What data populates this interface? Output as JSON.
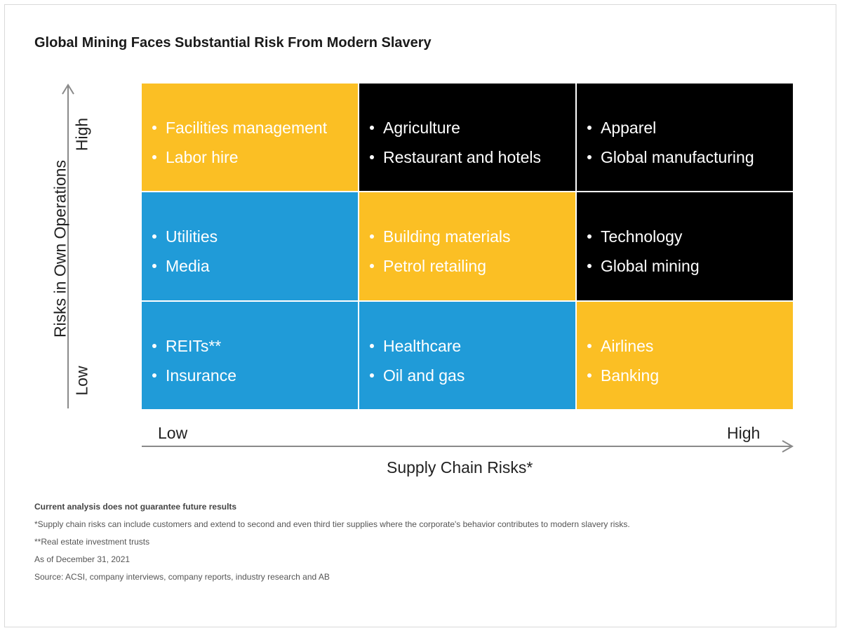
{
  "title": "Global Mining Faces Substantial Risk From Modern Slavery",
  "y_axis": {
    "label": "Risks in Own Operations",
    "high": "High",
    "low": "Low"
  },
  "x_axis": {
    "label": "Supply Chain Risks*",
    "low": "Low",
    "high": "High"
  },
  "colors": {
    "yellow": "#fbbf24",
    "black": "#000000",
    "blue": "#209bd8"
  },
  "matrix": [
    {
      "row": "High",
      "col": "Low",
      "color": "yellow",
      "items": [
        "Facilities management",
        "Labor hire"
      ]
    },
    {
      "row": "High",
      "col": "Medium",
      "color": "black",
      "items": [
        "Agriculture",
        "Restaurant and hotels"
      ]
    },
    {
      "row": "High",
      "col": "High",
      "color": "black",
      "items": [
        "Apparel",
        "Global manufacturing"
      ]
    },
    {
      "row": "Medium",
      "col": "Low",
      "color": "blue",
      "items": [
        "Utilities",
        "Media"
      ]
    },
    {
      "row": "Medium",
      "col": "Medium",
      "color": "yellow",
      "items": [
        "Building materials",
        "Petrol retailing"
      ]
    },
    {
      "row": "Medium",
      "col": "High",
      "color": "black",
      "items": [
        "Technology",
        "Global mining"
      ]
    },
    {
      "row": "Low",
      "col": "Low",
      "color": "blue",
      "items": [
        "REITs**",
        "Insurance"
      ]
    },
    {
      "row": "Low",
      "col": "Medium",
      "color": "blue",
      "items": [
        "Healthcare",
        "Oil and gas"
      ]
    },
    {
      "row": "Low",
      "col": "High",
      "color": "yellow",
      "items": [
        "Airlines",
        "Banking"
      ]
    }
  ],
  "notes": {
    "disclaimer": "Current analysis does not guarantee future results",
    "footnote_1": "*Supply chain risks can include customers and extend to second and even third tier supplies where the corporate's behavior contributes to modern slavery risks.",
    "footnote_2": "**Real estate investment trusts",
    "as_of": "As of December 31, 2021",
    "source": "Source: ACSI, company interviews, company reports, industry research and AB"
  }
}
